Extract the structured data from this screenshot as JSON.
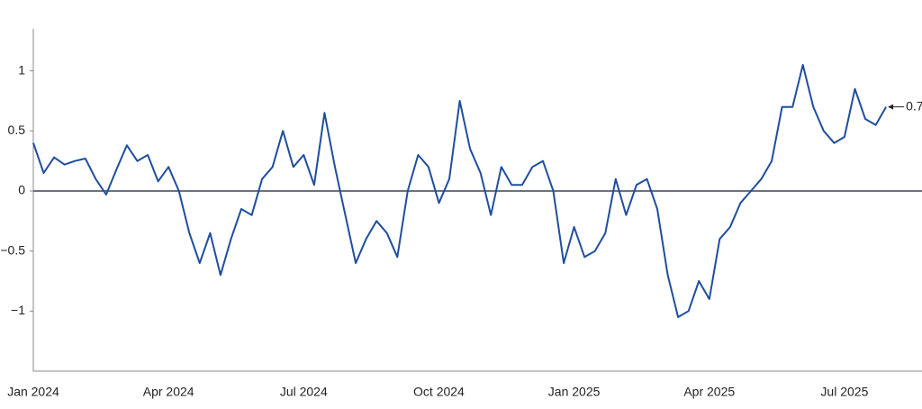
{
  "chart_data": {
    "type": "line",
    "categories": [
      "Jan 2024",
      null,
      null,
      null,
      null,
      null,
      null,
      null,
      null,
      null,
      null,
      null,
      null,
      "Apr 2024",
      null,
      null,
      null,
      null,
      null,
      null,
      null,
      null,
      null,
      null,
      null,
      null,
      "Jul 2024",
      null,
      null,
      null,
      null,
      null,
      null,
      null,
      null,
      null,
      null,
      null,
      null,
      "Oct 2024",
      null,
      null,
      null,
      null,
      null,
      null,
      null,
      null,
      null,
      null,
      null,
      null,
      "Jan 2025",
      null,
      null,
      null,
      null,
      null,
      null,
      null,
      null,
      null,
      null,
      null,
      null,
      "Apr 2025",
      null,
      null,
      null,
      null,
      null,
      null,
      null,
      null,
      null,
      null,
      null,
      null,
      "Jul 2025",
      null,
      null,
      null,
      null
    ],
    "series": [
      {
        "color": "#1f4e9e",
        "values": [
          0.4,
          0.15,
          0.28,
          0.22,
          0.25,
          0.27,
          0.1,
          -0.03,
          0.18,
          0.38,
          0.25,
          0.3,
          0.08,
          0.2,
          0.0,
          -0.35,
          -0.6,
          -0.35,
          -0.7,
          -0.4,
          -0.15,
          -0.2,
          0.1,
          0.2,
          0.5,
          0.2,
          0.3,
          0.05,
          0.65,
          0.2,
          -0.2,
          -0.6,
          -0.4,
          -0.25,
          -0.35,
          -0.55,
          0.0,
          0.3,
          0.2,
          -0.1,
          0.1,
          0.75,
          0.35,
          0.15,
          -0.2,
          0.2,
          0.05,
          0.05,
          0.2,
          0.25,
          0.0,
          -0.6,
          -0.3,
          -0.55,
          -0.5,
          -0.35,
          0.1,
          -0.2,
          0.05,
          0.1,
          -0.15,
          -0.7,
          -1.05,
          -1.0,
          -0.75,
          -0.9,
          -0.4,
          -0.3,
          -0.1,
          0.0,
          0.1,
          0.25,
          0.7,
          0.7,
          1.05,
          0.7,
          0.5,
          0.4,
          0.45,
          0.85,
          0.6,
          0.55,
          0.7
        ]
      }
    ],
    "annotation": "0.7",
    "ylim": [
      -1.5,
      1.35
    ],
    "yticks": [
      {
        "value": -1,
        "label": "−1"
      },
      {
        "value": -0.5,
        "label": "−0.5"
      },
      0,
      0.5,
      1
    ]
  }
}
